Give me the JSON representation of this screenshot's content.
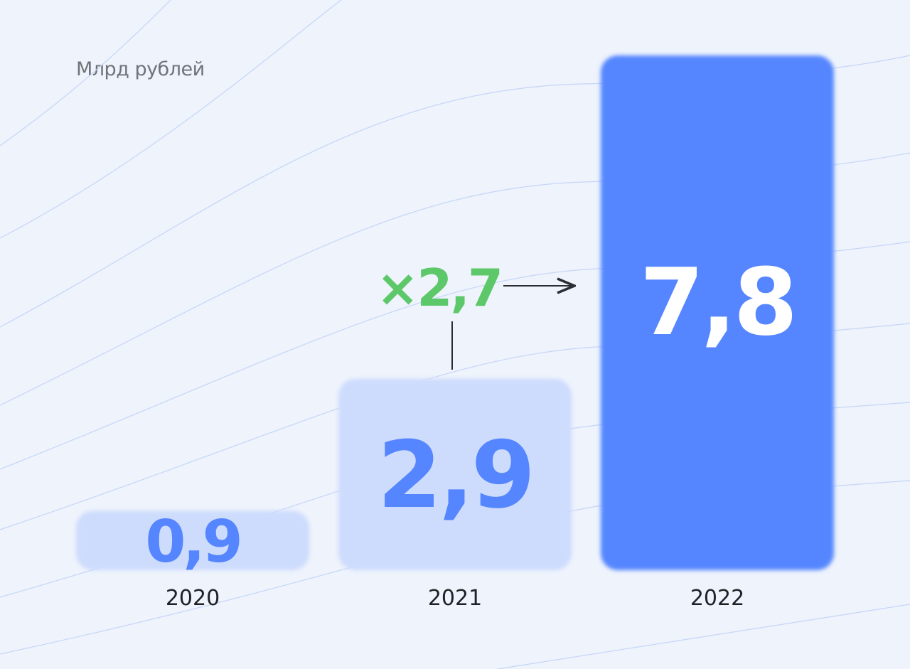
{
  "chart_data": {
    "type": "bar",
    "ylabel": "Млрд рублей",
    "categories": [
      "2020",
      "2021",
      "2022"
    ],
    "values": [
      0.9,
      2.9,
      7.8
    ],
    "value_labels": [
      "0,9",
      "2,9",
      "7,8"
    ],
    "ylim": [
      0,
      7.8
    ],
    "grid": false,
    "annotation": {
      "text": "×2,7",
      "from": "2021",
      "to": "2022",
      "color": "#5dc86a"
    },
    "colors": {
      "bar_light": "#cddcfd",
      "bar_strong": "#5586ff",
      "label_light": "#5586ff",
      "label_strong": "#ffffff",
      "axis_text": "#1f2125",
      "background": "#eef3fc",
      "wave_lines": "#c5d6f7"
    }
  }
}
